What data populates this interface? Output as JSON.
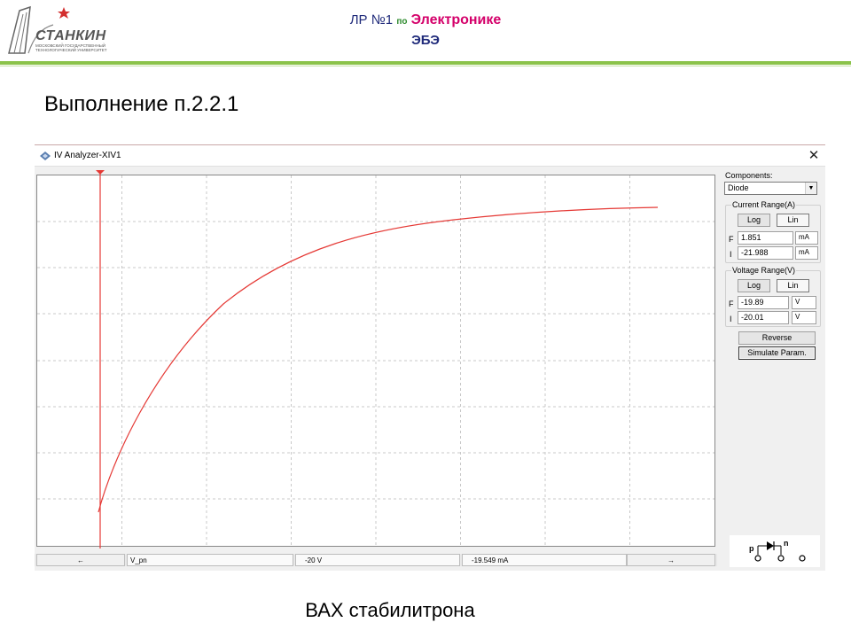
{
  "header": {
    "logo_text": "СТАНКИН",
    "logo_subtext": "МОСКОВСКИЙ ГОСУДАРСТВЕННЫЙ ТЕХНОЛОГИЧЕСКИЙ УНИВЕРСИТЕТ",
    "line1_prefix": "ЛР №1",
    "line1_mid": "по",
    "line1_subject": "Электронике",
    "line2": "ЭБЭ"
  },
  "section_title": "Выполнение п.2.2.1",
  "caption": "ВАХ стабилитрона",
  "window": {
    "title": "IV Analyzer-XIV1",
    "close_glyph": "✕",
    "components_label": "Components:",
    "component_selected": "Diode",
    "current_range": {
      "title": "Current Range(A)",
      "log_label": "Log",
      "lin_label": "Lin",
      "f_label": "F",
      "f_value": "1.851",
      "f_unit": "mA",
      "i_label": "I",
      "i_value": "-21.988",
      "i_unit": "mA"
    },
    "voltage_range": {
      "title": "Voltage Range(V)",
      "log_label": "Log",
      "lin_label": "Lin",
      "f_label": "F",
      "f_value": "-19.89",
      "f_unit": "V",
      "i_label": "I",
      "i_value": "-20.01",
      "i_unit": "V"
    },
    "reverse_label": "Reverse",
    "simulate_label": "Simulate Param.",
    "symbol_p": "p",
    "symbol_n": "n",
    "status": {
      "left_arrow": "←",
      "name": "V_pn",
      "voltage": "-20  V",
      "current": "-19.549 mA",
      "right_arrow": "→"
    }
  },
  "colors": {
    "curve": "#e53935",
    "grid": "#c8c8c8"
  }
}
